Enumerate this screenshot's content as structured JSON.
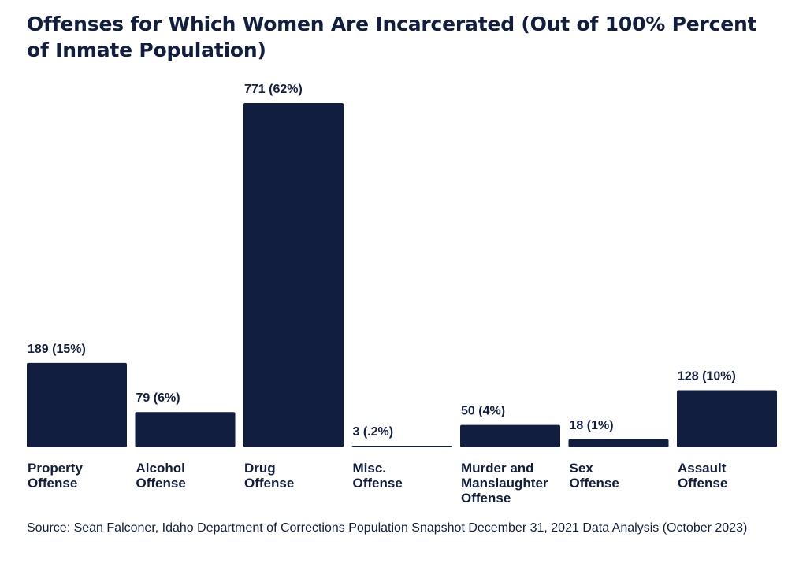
{
  "title": "Offenses for Which Women Are Incarcerated (Out of 100% Percent of Inmate Population)",
  "source": "Source: Sean Falconer, Idaho Department of Corrections Population Snapshot December 31, 2021 Data Analysis (October 2023)",
  "colors": {
    "bar": "#111e3f",
    "text": "#111e3f"
  },
  "chart_data": {
    "type": "bar",
    "title": "Offenses for Which Women Are Incarcerated (Out of 100% Percent of Inmate Population)",
    "xlabel": "",
    "ylabel": "",
    "ylim": [
      0,
      771
    ],
    "grid": false,
    "categories": [
      [
        "Property",
        "Offense"
      ],
      [
        "Alcohol",
        "Offense"
      ],
      [
        "Drug",
        "Offense"
      ],
      [
        "Misc.",
        "Offense"
      ],
      [
        "Murder and",
        "Manslaughter",
        "Offense"
      ],
      [
        "Sex",
        "Offense"
      ],
      [
        "Assault",
        "Offense"
      ]
    ],
    "values": [
      189,
      79,
      771,
      3,
      50,
      18,
      128
    ],
    "labels": [
      "189 (15%)",
      "79 (6%)",
      "771 (62%)",
      "3 (.2%)",
      "50 (4%)",
      "18 (1%)",
      "128 (10%)"
    ]
  }
}
